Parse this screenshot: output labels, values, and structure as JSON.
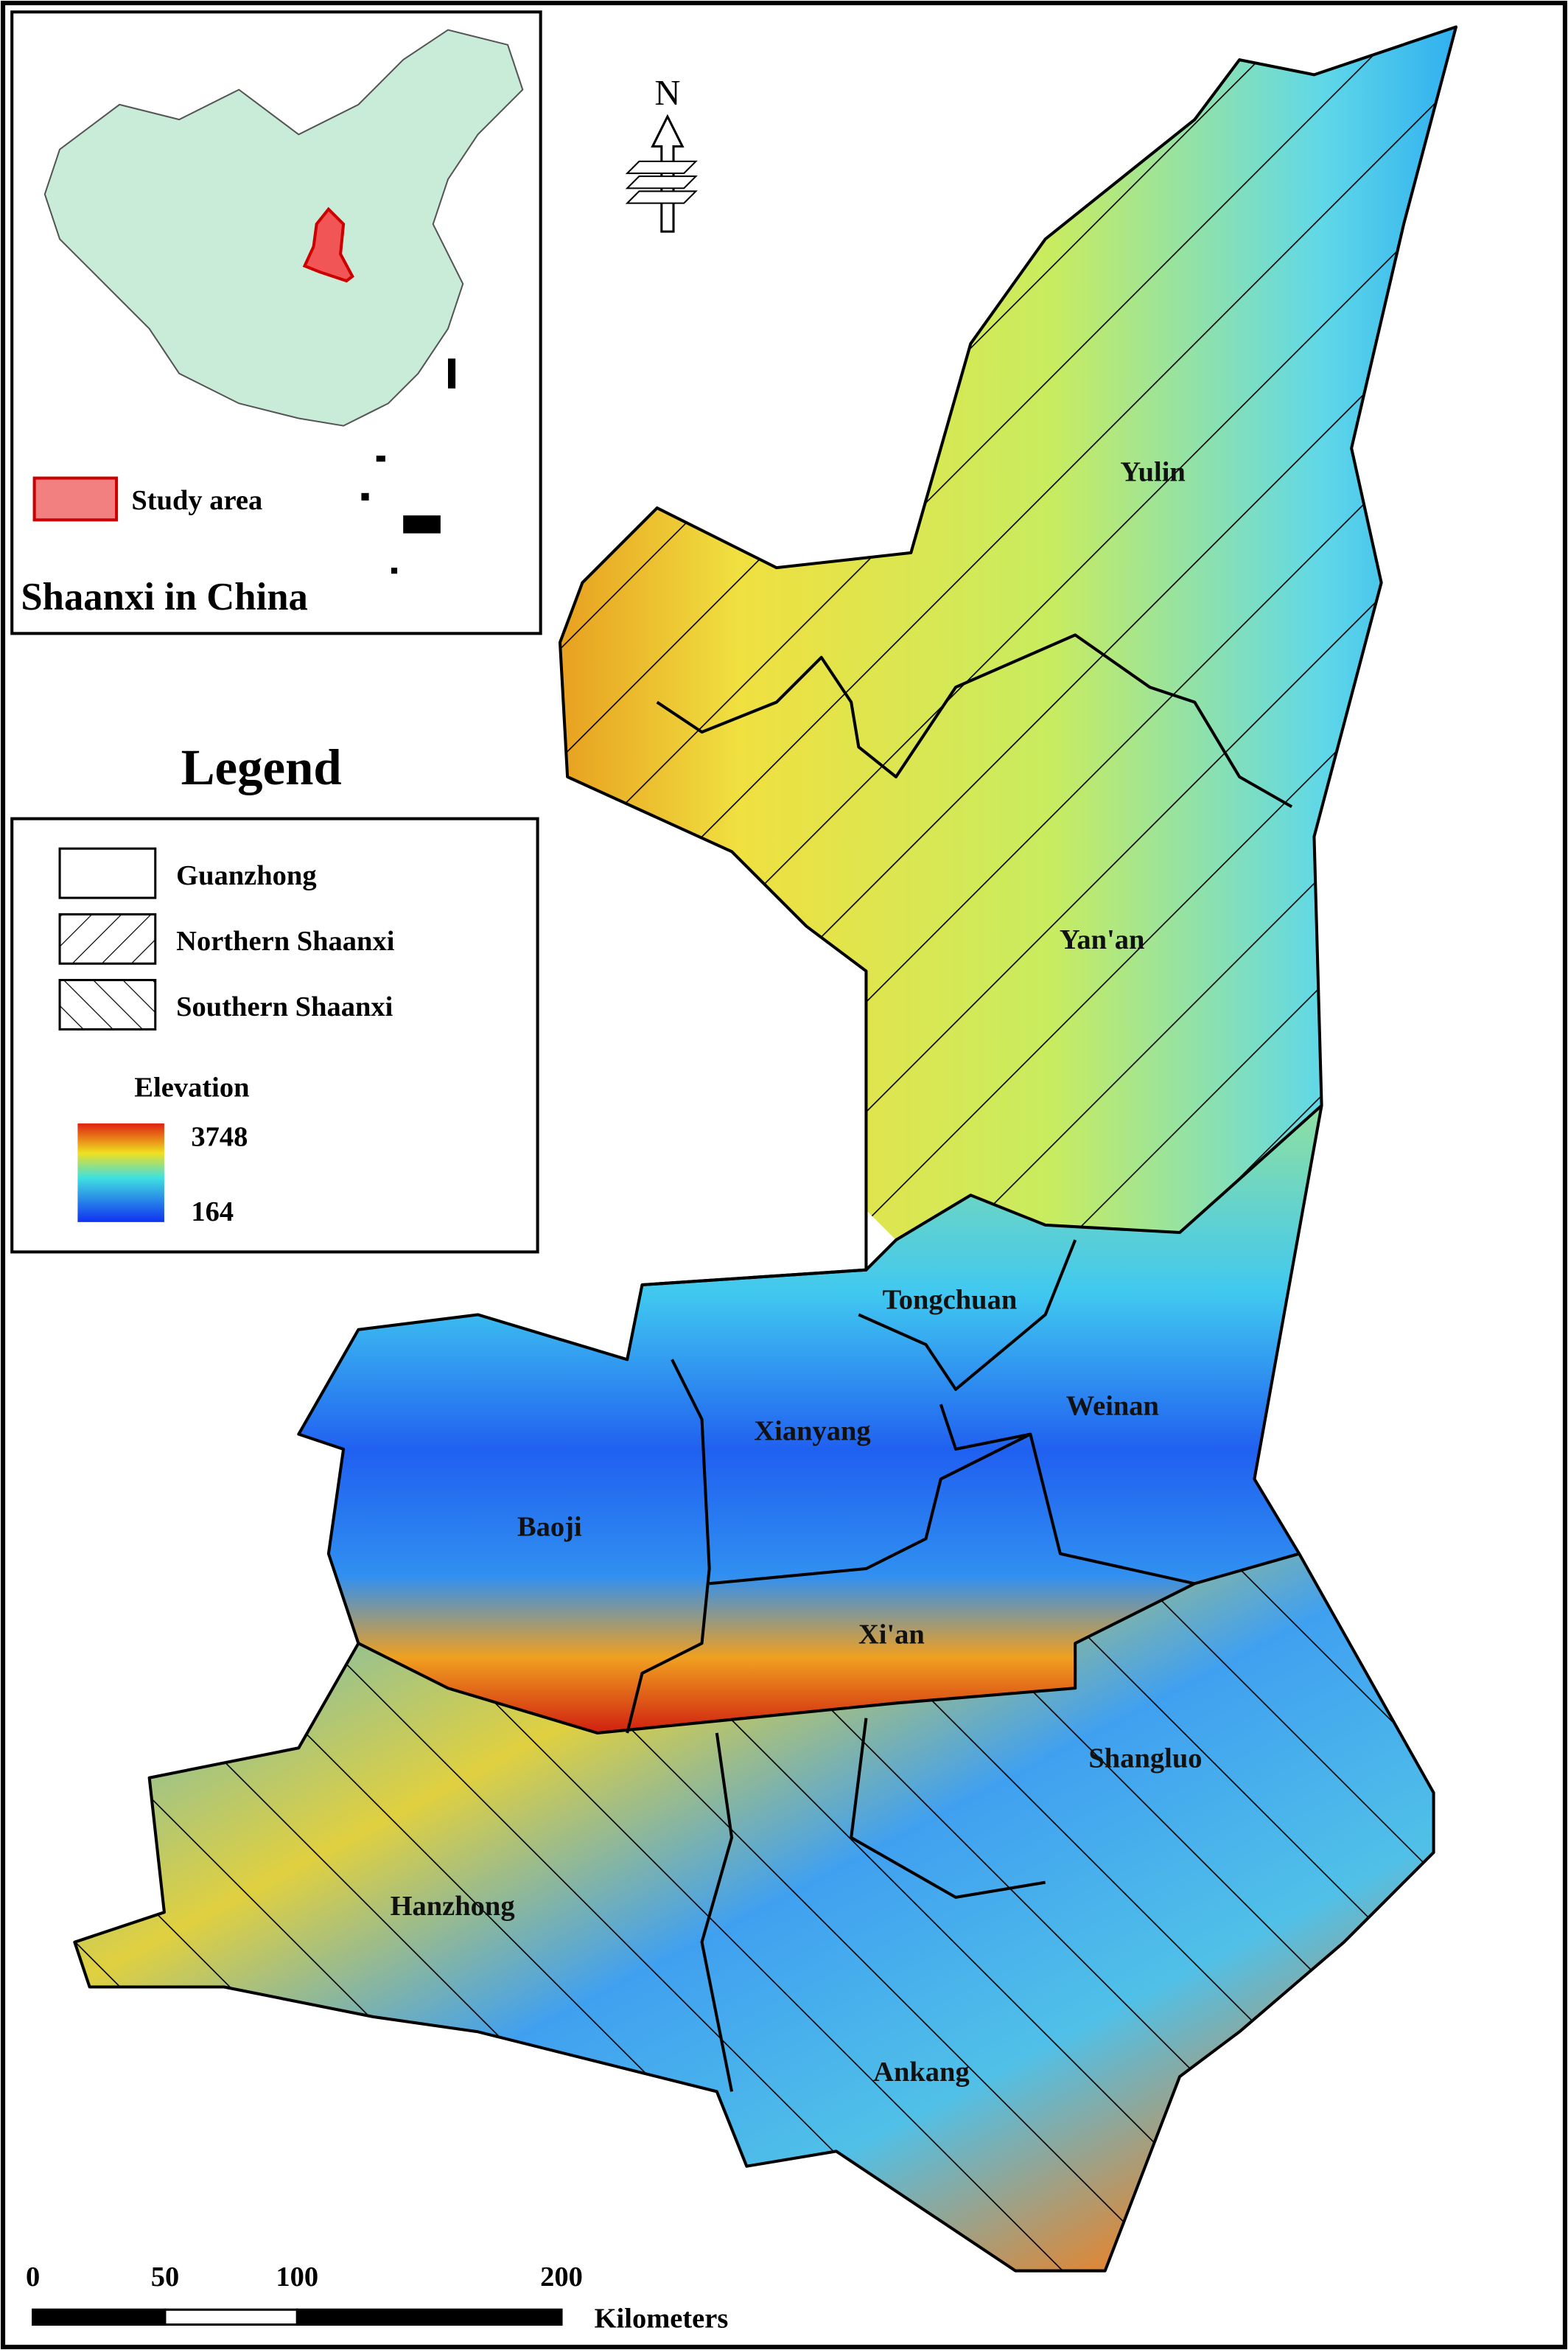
{
  "inset": {
    "legend_label": "Study area",
    "title": "Shaanxi in China"
  },
  "legend": {
    "title": "Legend",
    "items": [
      "Guanzhong",
      "Northern Shaanxi",
      "Southern Shaanxi"
    ],
    "elevation": {
      "title": "Elevation",
      "max": 3748,
      "min": 164
    }
  },
  "north_arrow": "N",
  "cities": [
    "Yulin",
    "Yan'an",
    "Tongchuan",
    "Weinan",
    "Xianyang",
    "Baoji",
    "Xi'an",
    "Shangluo",
    "Hanzhong",
    "Ankang"
  ],
  "scale_bar": {
    "ticks": [
      0,
      50,
      100,
      200
    ],
    "unit": "Kilometers"
  }
}
